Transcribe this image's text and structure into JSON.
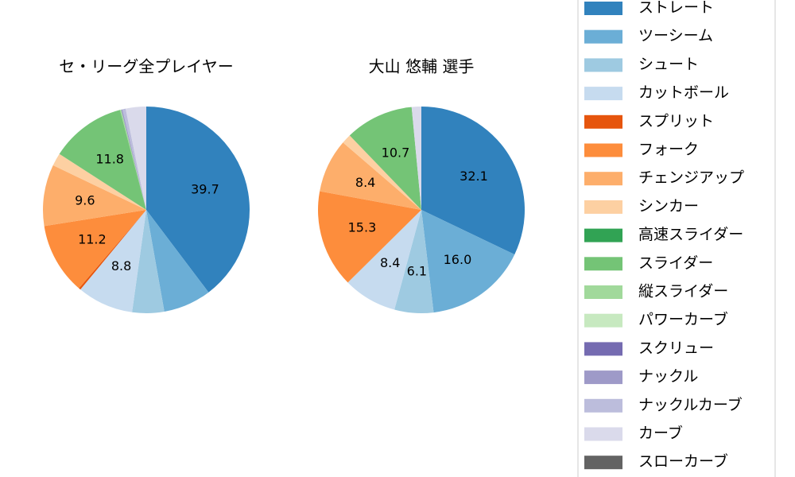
{
  "chart_data": [
    {
      "type": "pie",
      "title": "セ・リーグ全プレイヤー",
      "categories": [
        "ストレート",
        "ツーシーム",
        "シュート",
        "カットボール",
        "スプリット",
        "フォーク",
        "チェンジアップ",
        "シンカー",
        "高速スライダー",
        "スライダー",
        "縦スライダー",
        "パワーカーブ",
        "スクリュー",
        "ナックル",
        "ナックルカーブ",
        "カーブ",
        "スローカーブ"
      ],
      "values": [
        39.7,
        7.5,
        5.0,
        8.8,
        0.3,
        11.2,
        9.6,
        2.0,
        0,
        11.8,
        0.2,
        0,
        0,
        0.2,
        0.5,
        3.2,
        0
      ],
      "value_labels": [
        "39.7",
        null,
        null,
        "8.8",
        null,
        "11.2",
        "9.6",
        null,
        null,
        "11.8",
        null,
        null,
        null,
        null,
        null,
        null,
        null
      ],
      "colors": [
        "#3182bd",
        "#6baed6",
        "#9ecae1",
        "#c6dbef",
        "#e6550d",
        "#fd8d3c",
        "#fdae6b",
        "#fdd0a2",
        "#31a354",
        "#74c476",
        "#a1d99b",
        "#c7e9c0",
        "#756bb1",
        "#9e9ac8",
        "#bcbddc",
        "#dadaeb",
        "#636363"
      ]
    },
    {
      "type": "pie",
      "title": "大山 悠輔  選手",
      "categories": [
        "ストレート",
        "ツーシーム",
        "シュート",
        "カットボール",
        "スプリット",
        "フォーク",
        "チェンジアップ",
        "シンカー",
        "高速スライダー",
        "スライダー",
        "縦スライダー",
        "パワーカーブ",
        "スクリュー",
        "ナックル",
        "ナックルカーブ",
        "カーブ",
        "スローカーブ"
      ],
      "values": [
        32.1,
        16.0,
        6.1,
        8.4,
        0,
        15.3,
        8.4,
        1.5,
        0,
        10.7,
        0,
        0,
        0,
        0,
        0,
        1.5,
        0
      ],
      "value_labels": [
        "32.1",
        "16.0",
        "6.1",
        "8.4",
        null,
        "15.3",
        "8.4",
        null,
        null,
        "10.7",
        null,
        null,
        null,
        null,
        null,
        null,
        null
      ],
      "colors": [
        "#3182bd",
        "#6baed6",
        "#9ecae1",
        "#c6dbef",
        "#e6550d",
        "#fd8d3c",
        "#fdae6b",
        "#fdd0a2",
        "#31a354",
        "#74c476",
        "#a1d99b",
        "#c7e9c0",
        "#756bb1",
        "#9e9ac8",
        "#bcbddc",
        "#dadaeb",
        "#636363"
      ]
    }
  ]
}
